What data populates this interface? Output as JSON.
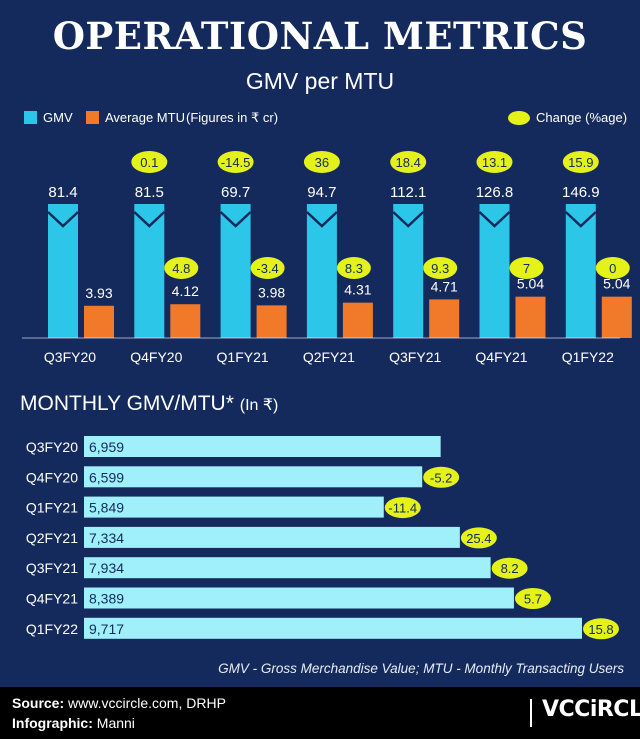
{
  "header": {
    "title": "OPERATIONAL METRICS",
    "subtitle": "GMV per MTU"
  },
  "legend": {
    "gmv": "GMV",
    "mtu": "Average MTU",
    "units": "(Figures in ₹ cr)",
    "change": "Change (%age)"
  },
  "colors": {
    "background": "#142a5c",
    "gmv": "#2cc6e8",
    "mtu": "#f07a2a",
    "change": "#e4f21a",
    "hbar": "#9ff0fb"
  },
  "chart_data": [
    {
      "type": "bar",
      "title": "GMV per MTU",
      "categories": [
        "Q3FY20",
        "Q4FY20",
        "Q1FY21",
        "Q2FY21",
        "Q3FY21",
        "Q4FY21",
        "Q1FY22"
      ],
      "series": [
        {
          "name": "GMV",
          "values": [
            81.4,
            81.5,
            69.7,
            94.7,
            112.1,
            126.8,
            146.9
          ]
        },
        {
          "name": "Average MTU",
          "values": [
            3.93,
            4.12,
            3.98,
            4.31,
            4.71,
            5.04,
            5.04
          ]
        }
      ],
      "changes": {
        "name": "Change (%age)",
        "gmv": [
          null,
          "0.1",
          "-14.5",
          "36",
          "18.4",
          "13.1",
          "15.9"
        ],
        "mtu": [
          null,
          "4.8",
          "-3.4",
          "8.3",
          "9.3",
          "7",
          "0"
        ]
      },
      "gmv_labels": [
        "81.4",
        "81.5",
        "69.7",
        "94.7",
        "112.1",
        "126.8",
        "146.9"
      ],
      "mtu_labels": [
        "3.93",
        "4.12",
        "3.98",
        "4.31",
        "4.71",
        "5.04",
        "5.04"
      ],
      "legend_position": "top"
    },
    {
      "type": "bar",
      "orientation": "horizontal",
      "title": "MONTHLY GMV/MTU*",
      "title_suffix": "(In ₹)",
      "categories": [
        "Q3FY20",
        "Q4FY20",
        "Q1FY21",
        "Q2FY21",
        "Q3FY21",
        "Q4FY21",
        "Q1FY22"
      ],
      "values": [
        6959,
        6599,
        5849,
        7334,
        7934,
        8389,
        9717
      ],
      "value_labels": [
        "6,959",
        "6,599",
        "5,849",
        "7,334",
        "7,934",
        "8,389",
        "9,717"
      ],
      "changes": [
        null,
        "-5.2",
        "-11.4",
        "25.4",
        "8.2",
        "5.7",
        "15.8"
      ]
    }
  ],
  "footnote": "GMV - Gross Merchandise Value; MTU - Monthly Transacting Users",
  "footer": {
    "source_label": "Source:",
    "source_value": "www.vccircle.com, DRHP",
    "infographic_label": "Infographic:",
    "infographic_value": "Manni",
    "logo": "VCCiRCLE"
  }
}
